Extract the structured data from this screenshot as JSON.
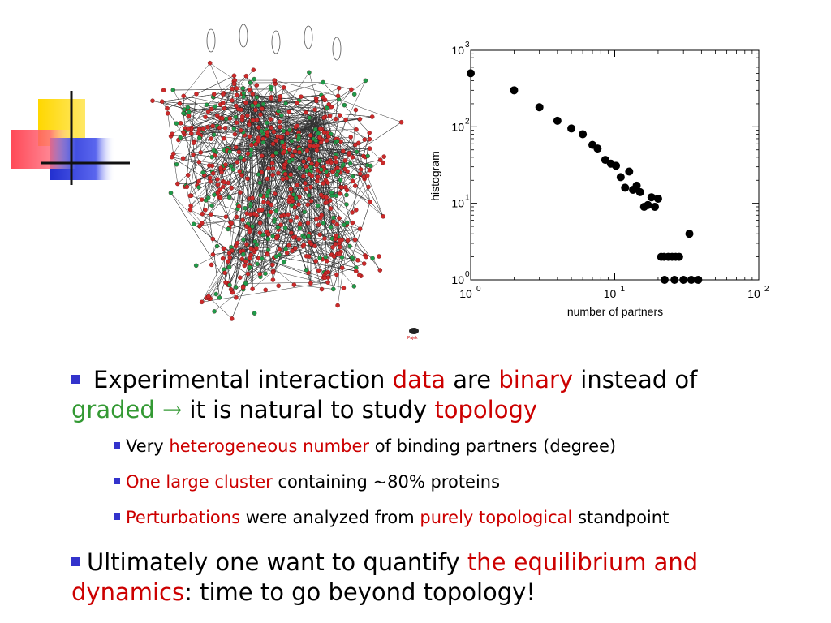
{
  "colors": {
    "bullet": "#3333cc",
    "highlight_red": "#cc0000",
    "highlight_green": "#339933",
    "node_red": "#cc2a2a",
    "node_green": "#1f9a4a",
    "deco_yellow": "#ffd700",
    "deco_blue": "#2b35d6",
    "deco_red": "#ff3344"
  },
  "network_figure": {
    "credit_label": "Pajek"
  },
  "chart_data": {
    "type": "scatter",
    "xlabel": "number of partners",
    "ylabel": "histogram",
    "x_scale": "log",
    "y_scale": "log",
    "xlim": [
      1,
      100
    ],
    "ylim": [
      1,
      1000
    ],
    "x_ticks": [
      {
        "base": "10",
        "exp": "0"
      },
      {
        "base": "10",
        "exp": "1"
      },
      {
        "base": "10",
        "exp": "2"
      }
    ],
    "y_ticks": [
      {
        "base": "10",
        "exp": "0"
      },
      {
        "base": "10",
        "exp": "1"
      },
      {
        "base": "10",
        "exp": "2"
      },
      {
        "base": "10",
        "exp": "3"
      }
    ],
    "grid": false,
    "points": [
      [
        1,
        500
      ],
      [
        2,
        300
      ],
      [
        3,
        180
      ],
      [
        4,
        120
      ],
      [
        5,
        95
      ],
      [
        6,
        80
      ],
      [
        7,
        58
      ],
      [
        7.6,
        52
      ],
      [
        8.6,
        37
      ],
      [
        9.4,
        33
      ],
      [
        10.2,
        31
      ],
      [
        11,
        22
      ],
      [
        11.8,
        16
      ],
      [
        12.6,
        26
      ],
      [
        13.4,
        15
      ],
      [
        14.2,
        17
      ],
      [
        15,
        14
      ],
      [
        16,
        9
      ],
      [
        17,
        9.5
      ],
      [
        18,
        12
      ],
      [
        19,
        9
      ],
      [
        20,
        11.5
      ],
      [
        21,
        2
      ],
      [
        22,
        2
      ],
      [
        23.5,
        2
      ],
      [
        25,
        2
      ],
      [
        26.5,
        2
      ],
      [
        22.2,
        1
      ],
      [
        26,
        1
      ],
      [
        28,
        2
      ],
      [
        30,
        1
      ],
      [
        33,
        4
      ],
      [
        34,
        1
      ],
      [
        38,
        1
      ]
    ]
  },
  "bullets": {
    "b1": {
      "t1": "Experimental interaction ",
      "t2": "data",
      "t3": " are ",
      "t4": "binary",
      "t5": " instead of",
      "t6": "graded",
      "t7": "→",
      "t8": " it is natural to study ",
      "t9": "topology"
    },
    "sub1": {
      "t1": "Very ",
      "t2": "heterogeneous number",
      "t3": " of binding partners (degree)"
    },
    "sub2": {
      "t1": "One large cluster",
      "t2": " containing ~80% proteins"
    },
    "sub3": {
      "t1": "Perturbations",
      "t2": " were analyzed from ",
      "t3": "purely topological",
      "t4": " standpoint"
    },
    "b2": {
      "t1": "Ultimately one want to quantify ",
      "t2": "the equilibrium and",
      "t3": "dynamics",
      "t4": ": time to go beyond topology!"
    }
  }
}
